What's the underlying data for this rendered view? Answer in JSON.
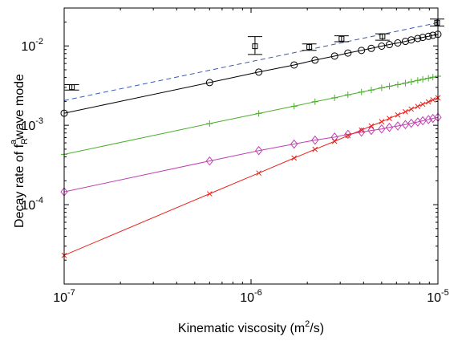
{
  "chart_data": {
    "type": "line",
    "x_scale": "log",
    "y_scale": "log",
    "xlim": [
      1e-07,
      1e-05
    ],
    "ylim": [
      1e-05,
      0.03
    ],
    "xlabel": "Kinematic viscosity (m²/s)",
    "xlabel_parts": {
      "prefix": "Kinematic viscosity (m",
      "sup": "2",
      "suffix": "/s)"
    },
    "ylabel": "Decay rate of f_R^a wave mode",
    "ylabel_parts": {
      "prefix": "Decay rate of f",
      "sub": "R",
      "sup": "a",
      "suffix": "wave mode"
    },
    "x_ticks": [
      {
        "value": 1e-07,
        "base": "10",
        "exp": "-7"
      },
      {
        "value": 1e-06,
        "base": "10",
        "exp": "-6"
      },
      {
        "value": 1e-05,
        "base": "10",
        "exp": "-5"
      }
    ],
    "y_ticks": [
      {
        "value": 0.0001,
        "base": "10",
        "exp": "-4"
      },
      {
        "value": 0.001,
        "base": "10",
        "exp": "-3"
      },
      {
        "value": 0.01,
        "base": "10",
        "exp": "-2"
      }
    ],
    "grid": false,
    "series": [
      {
        "color": "#000000",
        "marker": "circle",
        "linestyle": "solid",
        "x": [
          1e-07,
          6e-07,
          1.1e-06,
          1.7e-06,
          2.2e-06,
          2.8e-06,
          3.3e-06,
          3.9e-06,
          4.4e-06,
          5e-06,
          5.5e-06,
          6.1e-06,
          6.7e-06,
          7.2e-06,
          7.8e-06,
          8.3e-06,
          8.9e-06,
          9.4e-06,
          1e-05
        ],
        "y": [
          0.00142,
          0.00345,
          0.00468,
          0.00575,
          0.00662,
          0.00745,
          0.00813,
          0.00877,
          0.00931,
          0.00993,
          0.0104,
          0.0109,
          0.0114,
          0.0119,
          0.0124,
          0.0128,
          0.0132,
          0.0136,
          0.014
        ]
      },
      {
        "color": "#3b5bb5",
        "marker": "none",
        "linestyle": "dashed",
        "x": [
          1e-07,
          1e-05
        ],
        "y": [
          0.00205,
          0.0196
        ]
      },
      {
        "color": "#4cae2d",
        "marker": "plus",
        "linestyle": "solid",
        "x": [
          1e-07,
          6e-07,
          1.1e-06,
          1.7e-06,
          2.2e-06,
          2.8e-06,
          3.3e-06,
          3.9e-06,
          4.4e-06,
          5e-06,
          5.5e-06,
          6.1e-06,
          6.7e-06,
          7.2e-06,
          7.8e-06,
          8.3e-06,
          8.9e-06,
          9.4e-06,
          1e-05
        ],
        "y": [
          0.00043,
          0.00105,
          0.00141,
          0.00174,
          0.00198,
          0.00222,
          0.00242,
          0.00262,
          0.00278,
          0.00296,
          0.0031,
          0.00325,
          0.0034,
          0.00353,
          0.00367,
          0.00379,
          0.00392,
          0.00403,
          0.00415
        ]
      },
      {
        "color": "#c040b0",
        "marker": "diamond",
        "linestyle": "solid",
        "x": [
          1e-07,
          6e-07,
          1.1e-06,
          1.7e-06,
          2.2e-06,
          2.8e-06,
          3.3e-06,
          3.9e-06,
          4.4e-06,
          5e-06,
          5.5e-06,
          6.1e-06,
          6.7e-06,
          7.2e-06,
          7.8e-06,
          8.3e-06,
          8.9e-06,
          9.4e-06,
          1e-05
        ],
        "y": [
          0.000145,
          0.000355,
          0.00048,
          0.00058,
          0.00065,
          0.00071,
          0.00077,
          0.00082,
          0.00086,
          0.0009,
          0.00094,
          0.00098,
          0.00102,
          0.00106,
          0.0011,
          0.00114,
          0.00118,
          0.00122,
          0.00126
        ]
      },
      {
        "color": "#e8231c",
        "marker": "x",
        "linestyle": "solid",
        "x": [
          1e-07,
          6e-07,
          1.1e-06,
          1.7e-06,
          2.2e-06,
          2.8e-06,
          3.3e-06,
          3.9e-06,
          4.4e-06,
          5e-06,
          5.5e-06,
          6.1e-06,
          6.7e-06,
          7.2e-06,
          7.8e-06,
          8.3e-06,
          8.9e-06,
          9.4e-06,
          1e-05
        ],
        "y": [
          2.3e-05,
          0.000137,
          0.00025,
          0.000386,
          0.000498,
          0.000628,
          0.00074,
          0.00087,
          0.00098,
          0.00111,
          0.00122,
          0.00135,
          0.00148,
          0.0016,
          0.00173,
          0.00184,
          0.00197,
          0.00209,
          0.00222
        ]
      },
      {
        "color": "#000000",
        "marker": "square",
        "linestyle": "none",
        "errorbars": true,
        "x": [
          1.1e-07,
          1.05e-06,
          2.05e-06,
          3.05e-06,
          5.05e-06,
          9.9e-06
        ],
        "y": [
          0.00302,
          0.0099,
          0.0097,
          0.0123,
          0.0132,
          0.0196
        ],
        "err_low": [
          0.00278,
          0.0078,
          0.0088,
          0.0113,
          0.0118,
          0.0178
        ],
        "err_high": [
          0.00325,
          0.0131,
          0.0106,
          0.0134,
          0.0142,
          0.0218
        ]
      }
    ]
  }
}
